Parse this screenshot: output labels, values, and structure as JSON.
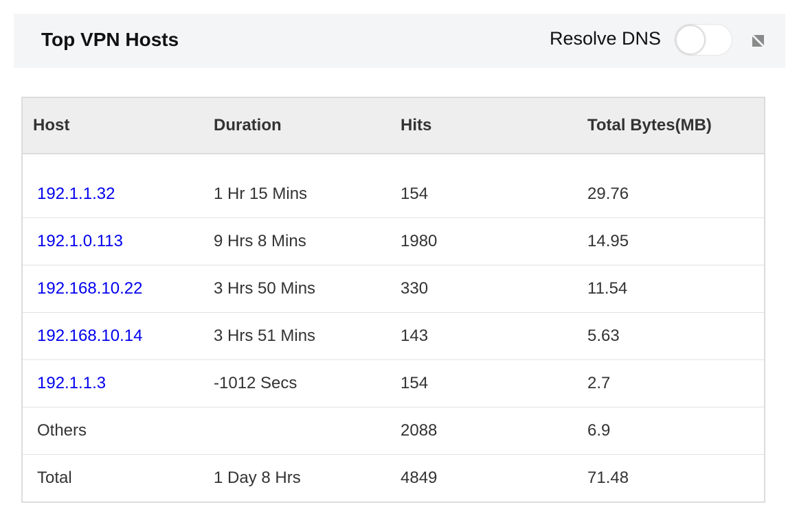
{
  "header": {
    "title": "Top VPN Hosts",
    "resolve_dns_label": "Resolve DNS",
    "resolve_dns_enabled": false
  },
  "table": {
    "columns": [
      "Host",
      "Duration",
      "Hits",
      "Total Bytes(MB)"
    ],
    "rows": [
      {
        "host": "192.1.1.32",
        "duration": "1 Hr 15 Mins",
        "hits": "154",
        "bytes": "29.76",
        "link": true
      },
      {
        "host": "192.1.0.113",
        "duration": "9 Hrs 8 Mins",
        "hits": "1980",
        "bytes": "14.95",
        "link": true
      },
      {
        "host": "192.168.10.22",
        "duration": "3 Hrs 50 Mins",
        "hits": "330",
        "bytes": "11.54",
        "link": true
      },
      {
        "host": "192.168.10.14",
        "duration": "3 Hrs 51 Mins",
        "hits": "143",
        "bytes": "5.63",
        "link": true
      },
      {
        "host": "192.1.1.3",
        "duration": "-1012 Secs",
        "hits": "154",
        "bytes": "2.7",
        "link": true
      },
      {
        "host": "Others",
        "duration": "",
        "hits": "2088",
        "bytes": "6.9",
        "link": false
      },
      {
        "host": "Total",
        "duration": "1 Day 8 Hrs",
        "hits": "4849",
        "bytes": "71.48",
        "link": false
      }
    ]
  },
  "colors": {
    "link": "#0000ee",
    "header_bg": "#f4f5f7",
    "table_header_bg": "#eeeeee"
  }
}
